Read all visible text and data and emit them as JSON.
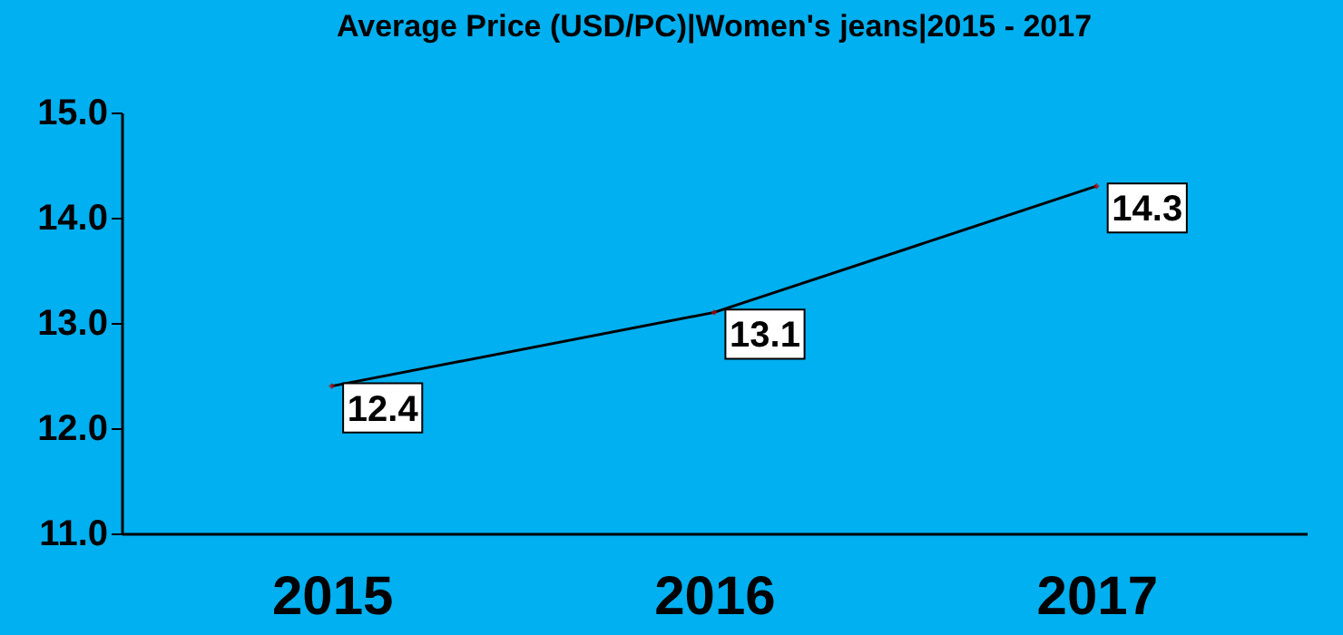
{
  "chart_data": {
    "type": "line",
    "title": "Average Price (USD/PC)|Women's jeans|2015 - 2017",
    "categories": [
      "2015",
      "2016",
      "2017"
    ],
    "series": [
      {
        "color": "#000000",
        "values": [
          12.4,
          13.1,
          14.3
        ]
      }
    ],
    "ylim": [
      11,
      15
    ],
    "yticks": [
      {
        "value": 11,
        "label": "11.0"
      },
      {
        "value": 12,
        "label": "12.0"
      },
      {
        "value": 13,
        "label": "13.0"
      },
      {
        "value": 14,
        "label": "14.0"
      },
      {
        "value": 15,
        "label": "15.0"
      }
    ],
    "grid": false,
    "marker": "diamond",
    "line_style": "solid",
    "data_labels": true
  }
}
